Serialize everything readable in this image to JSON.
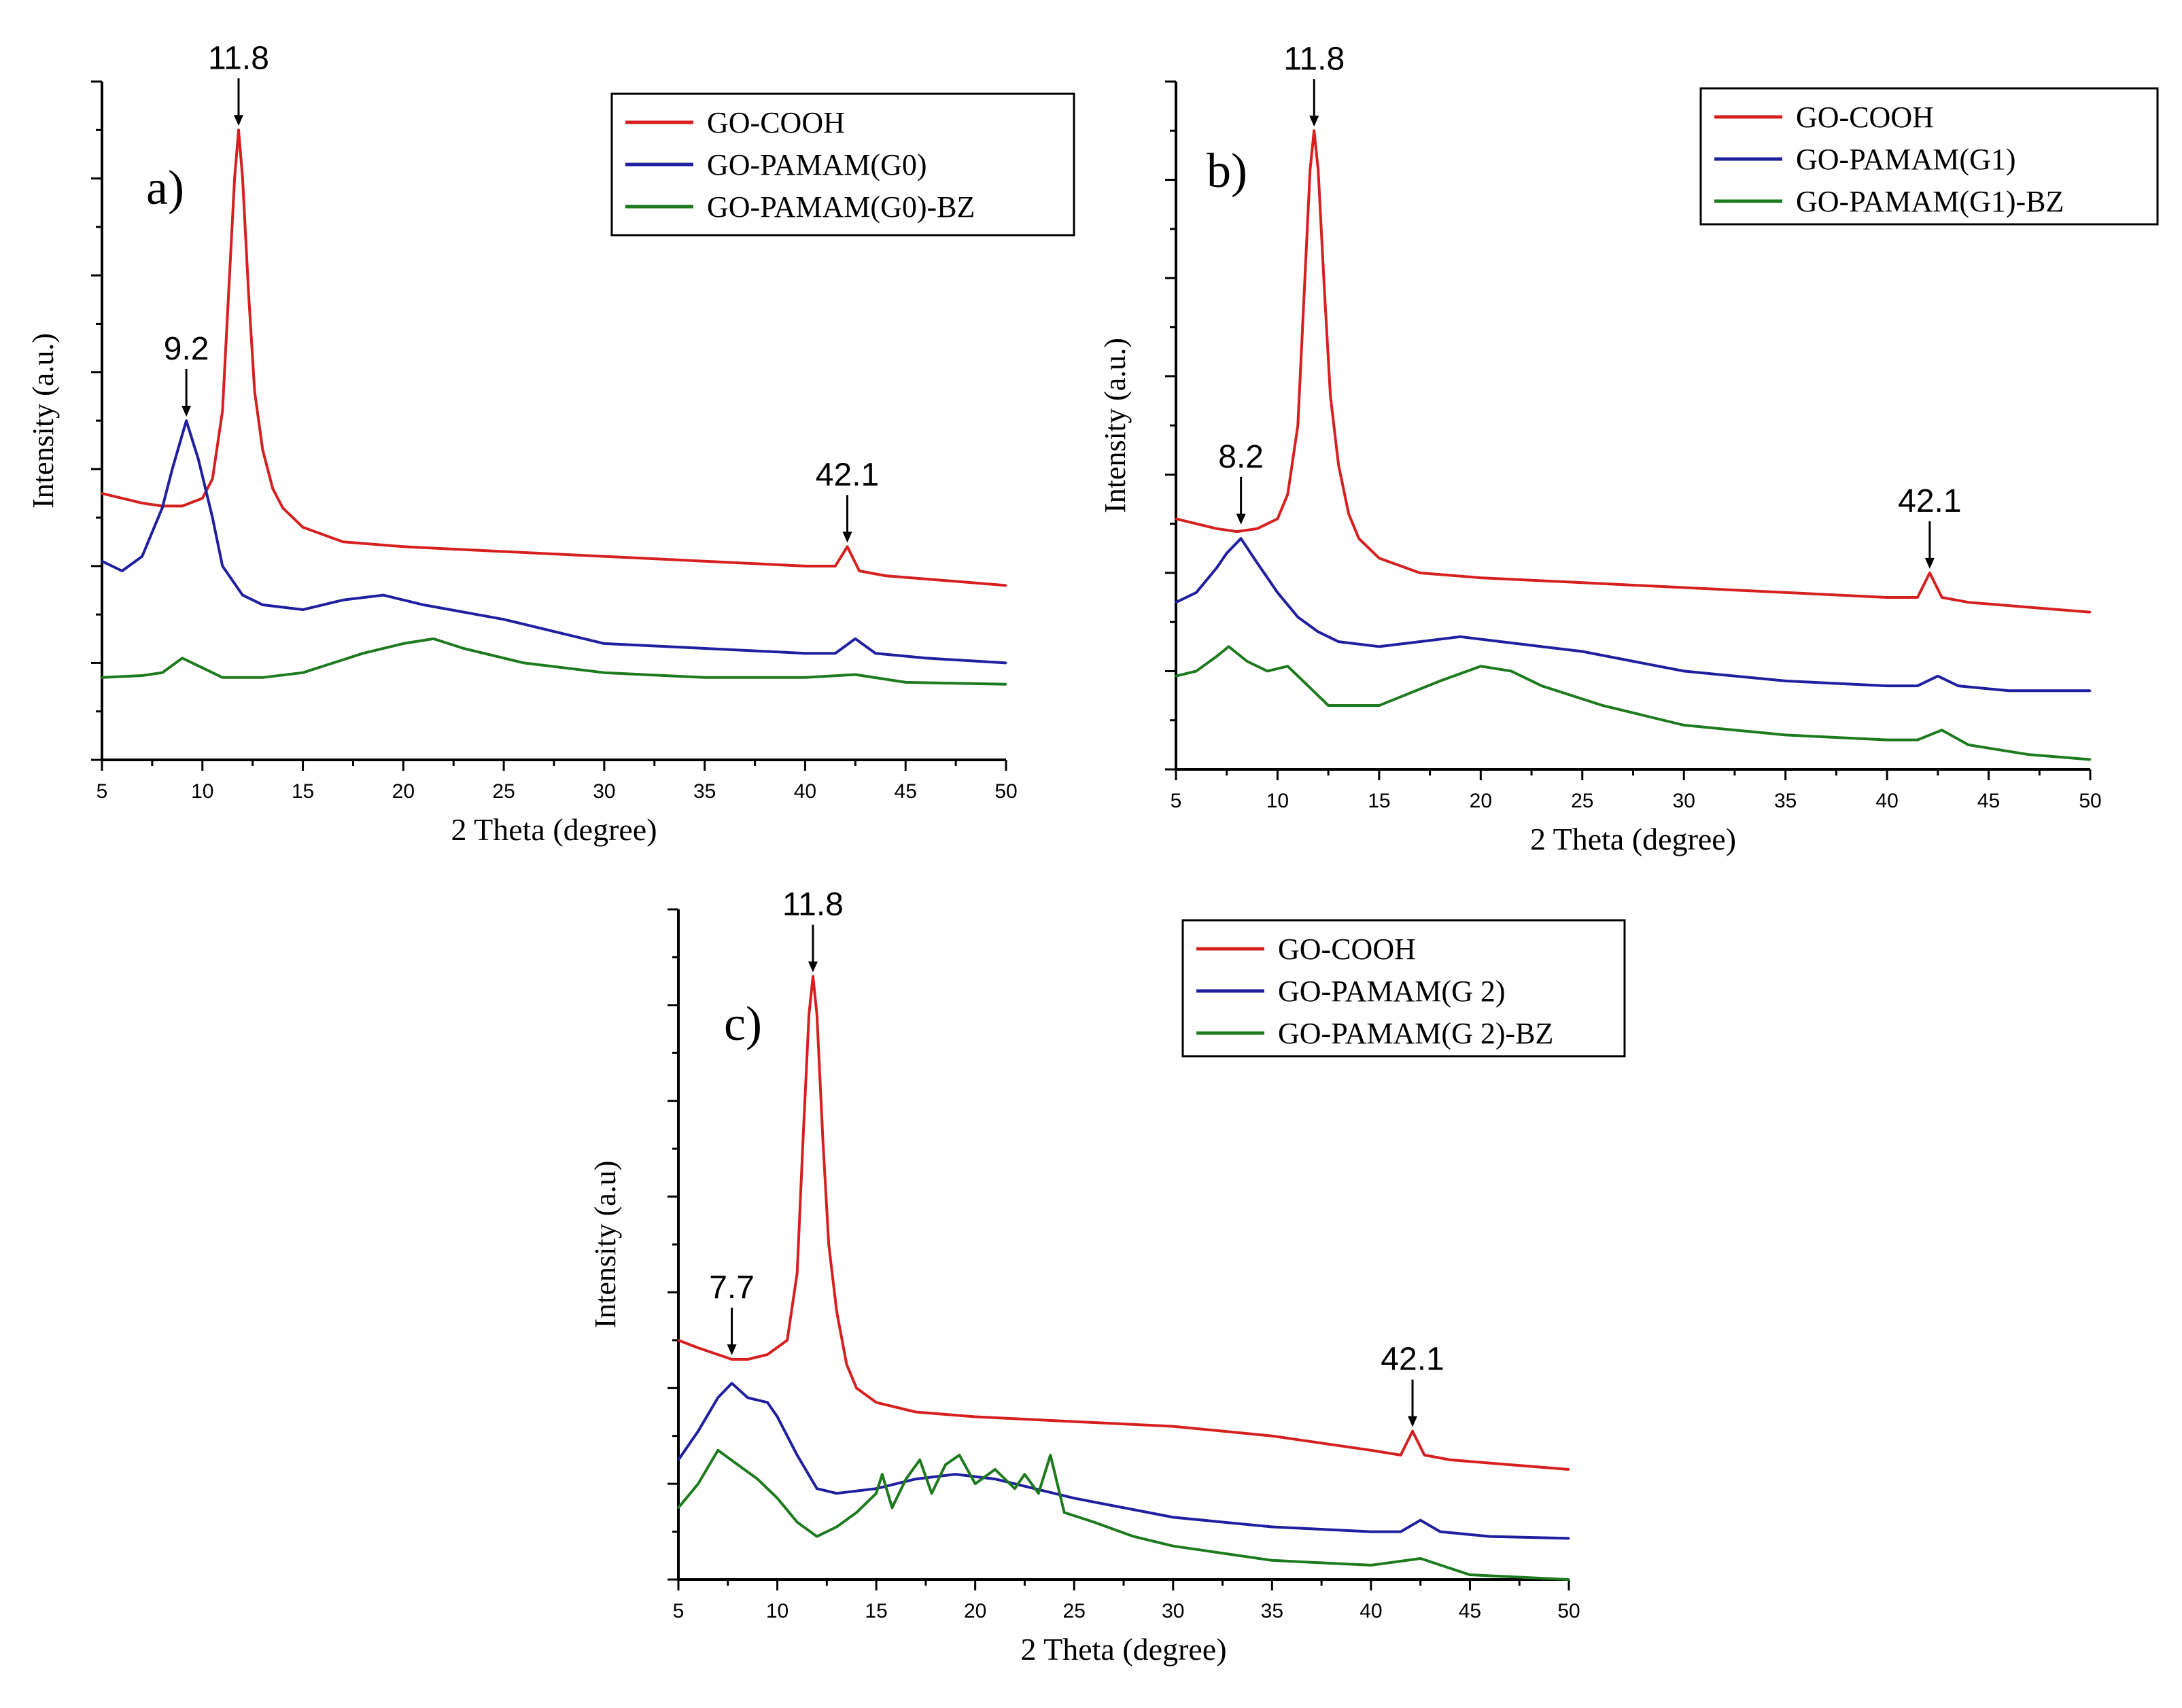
{
  "chart_data": [
    {
      "type": "line",
      "panel_label": "a)",
      "xlabel": "2 Theta (degree)",
      "ylabel": "Intensity (a.u.)",
      "xlim": [
        5,
        50
      ],
      "ylim": [
        0,
        7
      ],
      "xticks": [
        5,
        10,
        15,
        20,
        25,
        30,
        35,
        40,
        45,
        50
      ],
      "legend_position": "top-right",
      "series": [
        {
          "name": "GO-COOH",
          "color": "#d62020",
          "x": [
            5,
            6,
            7,
            8,
            9,
            10,
            10.5,
            11,
            11.3,
            11.6,
            11.8,
            12.0,
            12.3,
            12.6,
            13,
            13.5,
            14,
            15,
            17,
            20,
            25,
            30,
            35,
            40,
            41.5,
            42.1,
            42.7,
            44,
            47,
            50
          ],
          "y": [
            2.75,
            2.7,
            2.65,
            2.62,
            2.62,
            2.7,
            2.9,
            3.6,
            4.8,
            6.0,
            6.5,
            6.0,
            4.8,
            3.8,
            3.2,
            2.8,
            2.6,
            2.4,
            2.25,
            2.2,
            2.15,
            2.1,
            2.05,
            2.0,
            2.0,
            2.2,
            1.95,
            1.9,
            1.85,
            1.8
          ]
        },
        {
          "name": "GO-PAMAM(G0)",
          "color": "#1f1fa0",
          "x": [
            5,
            6,
            7,
            8,
            8.5,
            9.2,
            9.8,
            10.5,
            11,
            12,
            13,
            15,
            17,
            19,
            21,
            25,
            30,
            35,
            40,
            41.5,
            42.5,
            43.5,
            46,
            50
          ],
          "y": [
            2.05,
            1.95,
            2.1,
            2.6,
            3.0,
            3.5,
            3.1,
            2.5,
            2.0,
            1.7,
            1.6,
            1.55,
            1.65,
            1.7,
            1.6,
            1.45,
            1.2,
            1.15,
            1.1,
            1.1,
            1.25,
            1.1,
            1.05,
            1.0
          ]
        },
        {
          "name": "GO-PAMAM(G0)-BZ",
          "color": "#1e7a1e",
          "x": [
            5,
            7,
            8,
            9,
            10,
            11,
            13,
            15,
            18,
            20,
            21.5,
            23,
            26,
            30,
            35,
            40,
            42.5,
            45,
            50
          ],
          "y": [
            0.85,
            0.87,
            0.9,
            1.05,
            0.95,
            0.85,
            0.85,
            0.9,
            1.1,
            1.2,
            1.25,
            1.15,
            1.0,
            0.9,
            0.85,
            0.85,
            0.88,
            0.8,
            0.78
          ]
        }
      ],
      "annotations": [
        {
          "text": "11.8",
          "x": 11.8,
          "y": 6.5
        },
        {
          "text": "9.2",
          "x": 9.2,
          "y": 3.5
        },
        {
          "text": "42.1",
          "x": 42.1,
          "y": 2.2
        }
      ]
    },
    {
      "type": "line",
      "panel_label": "b)",
      "xlabel": "2 Theta (degree)",
      "ylabel": "Intensity (a.u.)",
      "xlim": [
        5,
        50
      ],
      "ylim": [
        0,
        7
      ],
      "xticks": [
        5,
        10,
        15,
        20,
        25,
        30,
        35,
        40,
        45,
        50
      ],
      "legend_position": "top-right",
      "series": [
        {
          "name": "GO-COOH",
          "color": "#d62020",
          "x": [
            5,
            6,
            7,
            8,
            9,
            10,
            10.5,
            11,
            11.3,
            11.6,
            11.8,
            12.0,
            12.3,
            12.6,
            13,
            13.5,
            14,
            15,
            17,
            20,
            25,
            30,
            35,
            40,
            41.5,
            42.1,
            42.7,
            44,
            47,
            50
          ],
          "y": [
            2.55,
            2.5,
            2.45,
            2.42,
            2.45,
            2.55,
            2.8,
            3.5,
            4.8,
            6.1,
            6.5,
            6.1,
            4.9,
            3.8,
            3.1,
            2.6,
            2.35,
            2.15,
            2.0,
            1.95,
            1.9,
            1.85,
            1.8,
            1.75,
            1.75,
            2.0,
            1.75,
            1.7,
            1.65,
            1.6
          ]
        },
        {
          "name": "GO-PAMAM(G1)",
          "color": "#1f1fa0",
          "x": [
            5,
            6,
            7,
            7.5,
            8.2,
            9,
            10,
            11,
            12,
            13,
            15,
            17,
            19,
            21,
            25,
            30,
            35,
            40,
            41.5,
            42.5,
            43.5,
            46,
            50
          ],
          "y": [
            1.7,
            1.8,
            2.05,
            2.2,
            2.35,
            2.1,
            1.8,
            1.55,
            1.4,
            1.3,
            1.25,
            1.3,
            1.35,
            1.3,
            1.2,
            1.0,
            0.9,
            0.85,
            0.85,
            0.95,
            0.85,
            0.8,
            0.8
          ]
        },
        {
          "name": "GO-PAMAM(G1)-BZ",
          "color": "#1e7a1e",
          "x": [
            5,
            6,
            7,
            7.6,
            8.5,
            9.5,
            10.5,
            11.5,
            12.5,
            15,
            18,
            20,
            21.5,
            23,
            26,
            30,
            35,
            40,
            41.5,
            42.7,
            44,
            47,
            50
          ],
          "y": [
            0.95,
            1.0,
            1.15,
            1.25,
            1.1,
            1.0,
            1.05,
            0.85,
            0.65,
            0.65,
            0.9,
            1.05,
            1.0,
            0.85,
            0.65,
            0.45,
            0.35,
            0.3,
            0.3,
            0.4,
            0.25,
            0.15,
            0.1
          ]
        }
      ],
      "annotations": [
        {
          "text": "11.8",
          "x": 11.8,
          "y": 6.5
        },
        {
          "text": "8.2",
          "x": 8.2,
          "y": 2.45
        },
        {
          "text": "42.1",
          "x": 42.1,
          "y": 2.0
        }
      ]
    },
    {
      "type": "line",
      "panel_label": "c)",
      "xlabel": "2 Theta (degree)",
      "ylabel": "Intensity (a.u)",
      "xlim": [
        5,
        50
      ],
      "ylim": [
        0,
        7
      ],
      "xticks": [
        5,
        10,
        15,
        20,
        25,
        30,
        35,
        40,
        45,
        50
      ],
      "legend_position": "top-right",
      "series": [
        {
          "name": "GO-COOH",
          "color": "#d62020",
          "x": [
            5,
            6,
            7,
            7.7,
            8.5,
            9.5,
            10.5,
            11,
            11.3,
            11.6,
            11.8,
            12.0,
            12.3,
            12.6,
            13,
            13.5,
            14,
            15,
            17,
            20,
            25,
            30,
            35,
            40,
            41.5,
            42.1,
            42.7,
            44,
            47,
            50
          ],
          "y": [
            2.5,
            2.42,
            2.35,
            2.3,
            2.3,
            2.35,
            2.5,
            3.2,
            4.6,
            5.9,
            6.3,
            5.9,
            4.6,
            3.5,
            2.8,
            2.25,
            2.0,
            1.85,
            1.75,
            1.7,
            1.65,
            1.6,
            1.5,
            1.35,
            1.3,
            1.55,
            1.3,
            1.25,
            1.2,
            1.15
          ]
        },
        {
          "name": "GO-PAMAM(G 2)",
          "color": "#1f1fa0",
          "x": [
            5,
            6,
            7,
            7.7,
            8.5,
            9.5,
            10,
            11,
            12,
            13,
            15,
            17,
            19,
            21,
            25,
            30,
            35,
            40,
            41.5,
            42.5,
            43.5,
            46,
            50
          ],
          "y": [
            1.25,
            1.55,
            1.9,
            2.05,
            1.9,
            1.85,
            1.7,
            1.3,
            0.95,
            0.9,
            0.95,
            1.05,
            1.1,
            1.05,
            0.85,
            0.65,
            0.55,
            0.5,
            0.5,
            0.62,
            0.5,
            0.45,
            0.43
          ]
        },
        {
          "name": "GO-PAMAM(G 2)-BZ",
          "color": "#1e7a1e",
          "x": [
            5,
            6,
            7,
            8,
            9,
            10,
            11,
            12,
            13,
            14,
            15,
            15.3,
            15.8,
            16.5,
            17.2,
            17.8,
            18.5,
            19.2,
            20,
            21,
            22,
            22.5,
            23.2,
            23.8,
            24.5,
            26,
            28,
            30,
            35,
            40,
            42.5,
            45,
            50
          ],
          "y": [
            0.75,
            1.0,
            1.35,
            1.2,
            1.05,
            0.85,
            0.6,
            0.45,
            0.55,
            0.7,
            0.9,
            1.1,
            0.75,
            1.05,
            1.25,
            0.9,
            1.2,
            1.3,
            1.0,
            1.15,
            0.95,
            1.1,
            0.9,
            1.3,
            0.7,
            0.6,
            0.45,
            0.35,
            0.2,
            0.15,
            0.22,
            0.05,
            0.0
          ]
        }
      ],
      "annotations": [
        {
          "text": "11.8",
          "x": 11.8,
          "y": 6.3
        },
        {
          "text": "7.7",
          "x": 7.7,
          "y": 2.3
        },
        {
          "text": "42.1",
          "x": 42.1,
          "y": 1.55
        }
      ]
    }
  ]
}
